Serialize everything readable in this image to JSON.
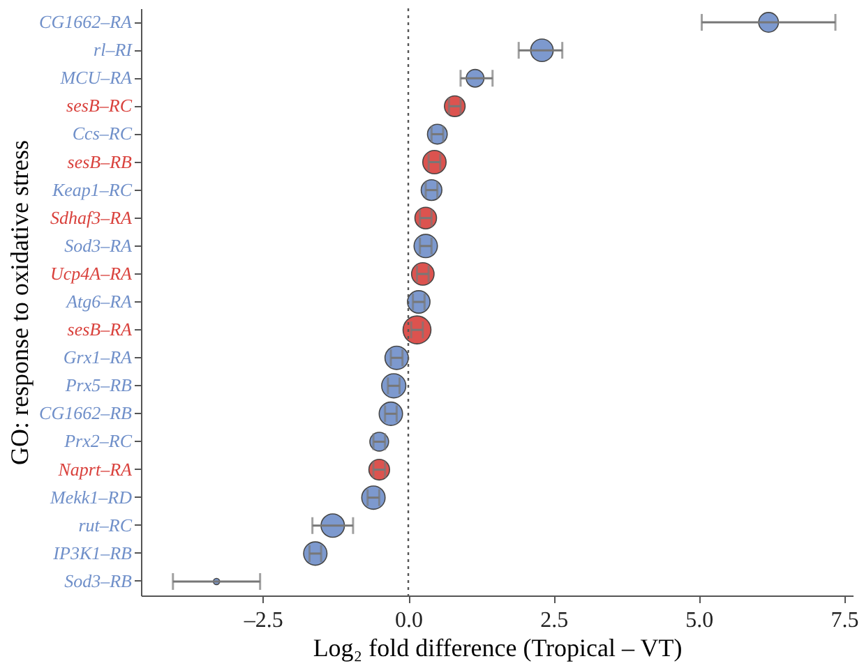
{
  "chart_data": {
    "type": "bubble",
    "orientation": "horizontal",
    "xlabel": "Log₂ fold difference (Tropical – VT)",
    "ylabel": "GO: response to oxidative stress",
    "categories": [
      "CG1662–RA",
      "rl–RI",
      "MCU–RA",
      "sesB–RC",
      "Ccs–RC",
      "sesB–RB",
      "Keap1–RC",
      "Sdhaf3–RA",
      "Sod3–RA",
      "Ucp4A–RA",
      "Atg6–RA",
      "sesB–RA",
      "Grx1–RA",
      "Prx5–RB",
      "CG1662–RB",
      "Prx2–RC",
      "Naprt–RA",
      "Mekk1–RD",
      "rut–RC",
      "IP3K1–RB",
      "Sod3–RB"
    ],
    "values": [
      6.2,
      2.3,
      1.15,
      0.8,
      0.5,
      0.45,
      0.4,
      0.3,
      0.3,
      0.25,
      0.18,
      0.15,
      -0.2,
      -0.25,
      -0.3,
      -0.5,
      -0.5,
      -0.6,
      -1.3,
      -1.6,
      -3.3
    ],
    "errors": [
      [
        5.05,
        7.35
      ],
      [
        1.9,
        2.65
      ],
      [
        0.9,
        1.45
      ],
      0.1,
      0.1,
      0.1,
      0.1,
      0.1,
      0.1,
      0.1,
      0.1,
      0.1,
      0.1,
      0.1,
      0.1,
      0.1,
      0.1,
      0.1,
      [
        -1.65,
        -0.95
      ],
      0.1,
      [
        -4.05,
        -2.55
      ]
    ],
    "sizes": [
      0.5,
      0.65,
      0.4,
      0.55,
      0.5,
      0.7,
      0.55,
      0.6,
      0.7,
      0.65,
      0.65,
      1,
      0.7,
      0.75,
      0.7,
      0.45,
      0.55,
      0.7,
      0.7,
      0.7,
      0.05
    ],
    "colors": [
      "#6f8fc9",
      "#6f8fc9",
      "#6f8fc9",
      "#d9413c",
      "#6f8fc9",
      "#d9413c",
      "#6f8fc9",
      "#d9413c",
      "#6f8fc9",
      "#d9413c",
      "#6f8fc9",
      "#d9413c",
      "#6f8fc9",
      "#6f8fc9",
      "#6f8fc9",
      "#6f8fc9",
      "#d9413c",
      "#6f8fc9",
      "#6f8fc9",
      "#6f8fc9",
      "#6f8fc9"
    ],
    "xlim": [
      -4.6,
      7.65
    ],
    "xticks": [
      {
        "value": -2.5,
        "label": "–2.5"
      },
      {
        "value": 0,
        "label": "0.0"
      },
      {
        "value": 2.5,
        "label": "2.5"
      },
      {
        "value": 5,
        "label": "5.0"
      },
      {
        "value": 7.5,
        "label": "7.5"
      }
    ],
    "ref_lines": [
      {
        "axis": "x",
        "value": 0,
        "line_style": "dotted",
        "color": "#555555"
      }
    ],
    "grid": false
  }
}
